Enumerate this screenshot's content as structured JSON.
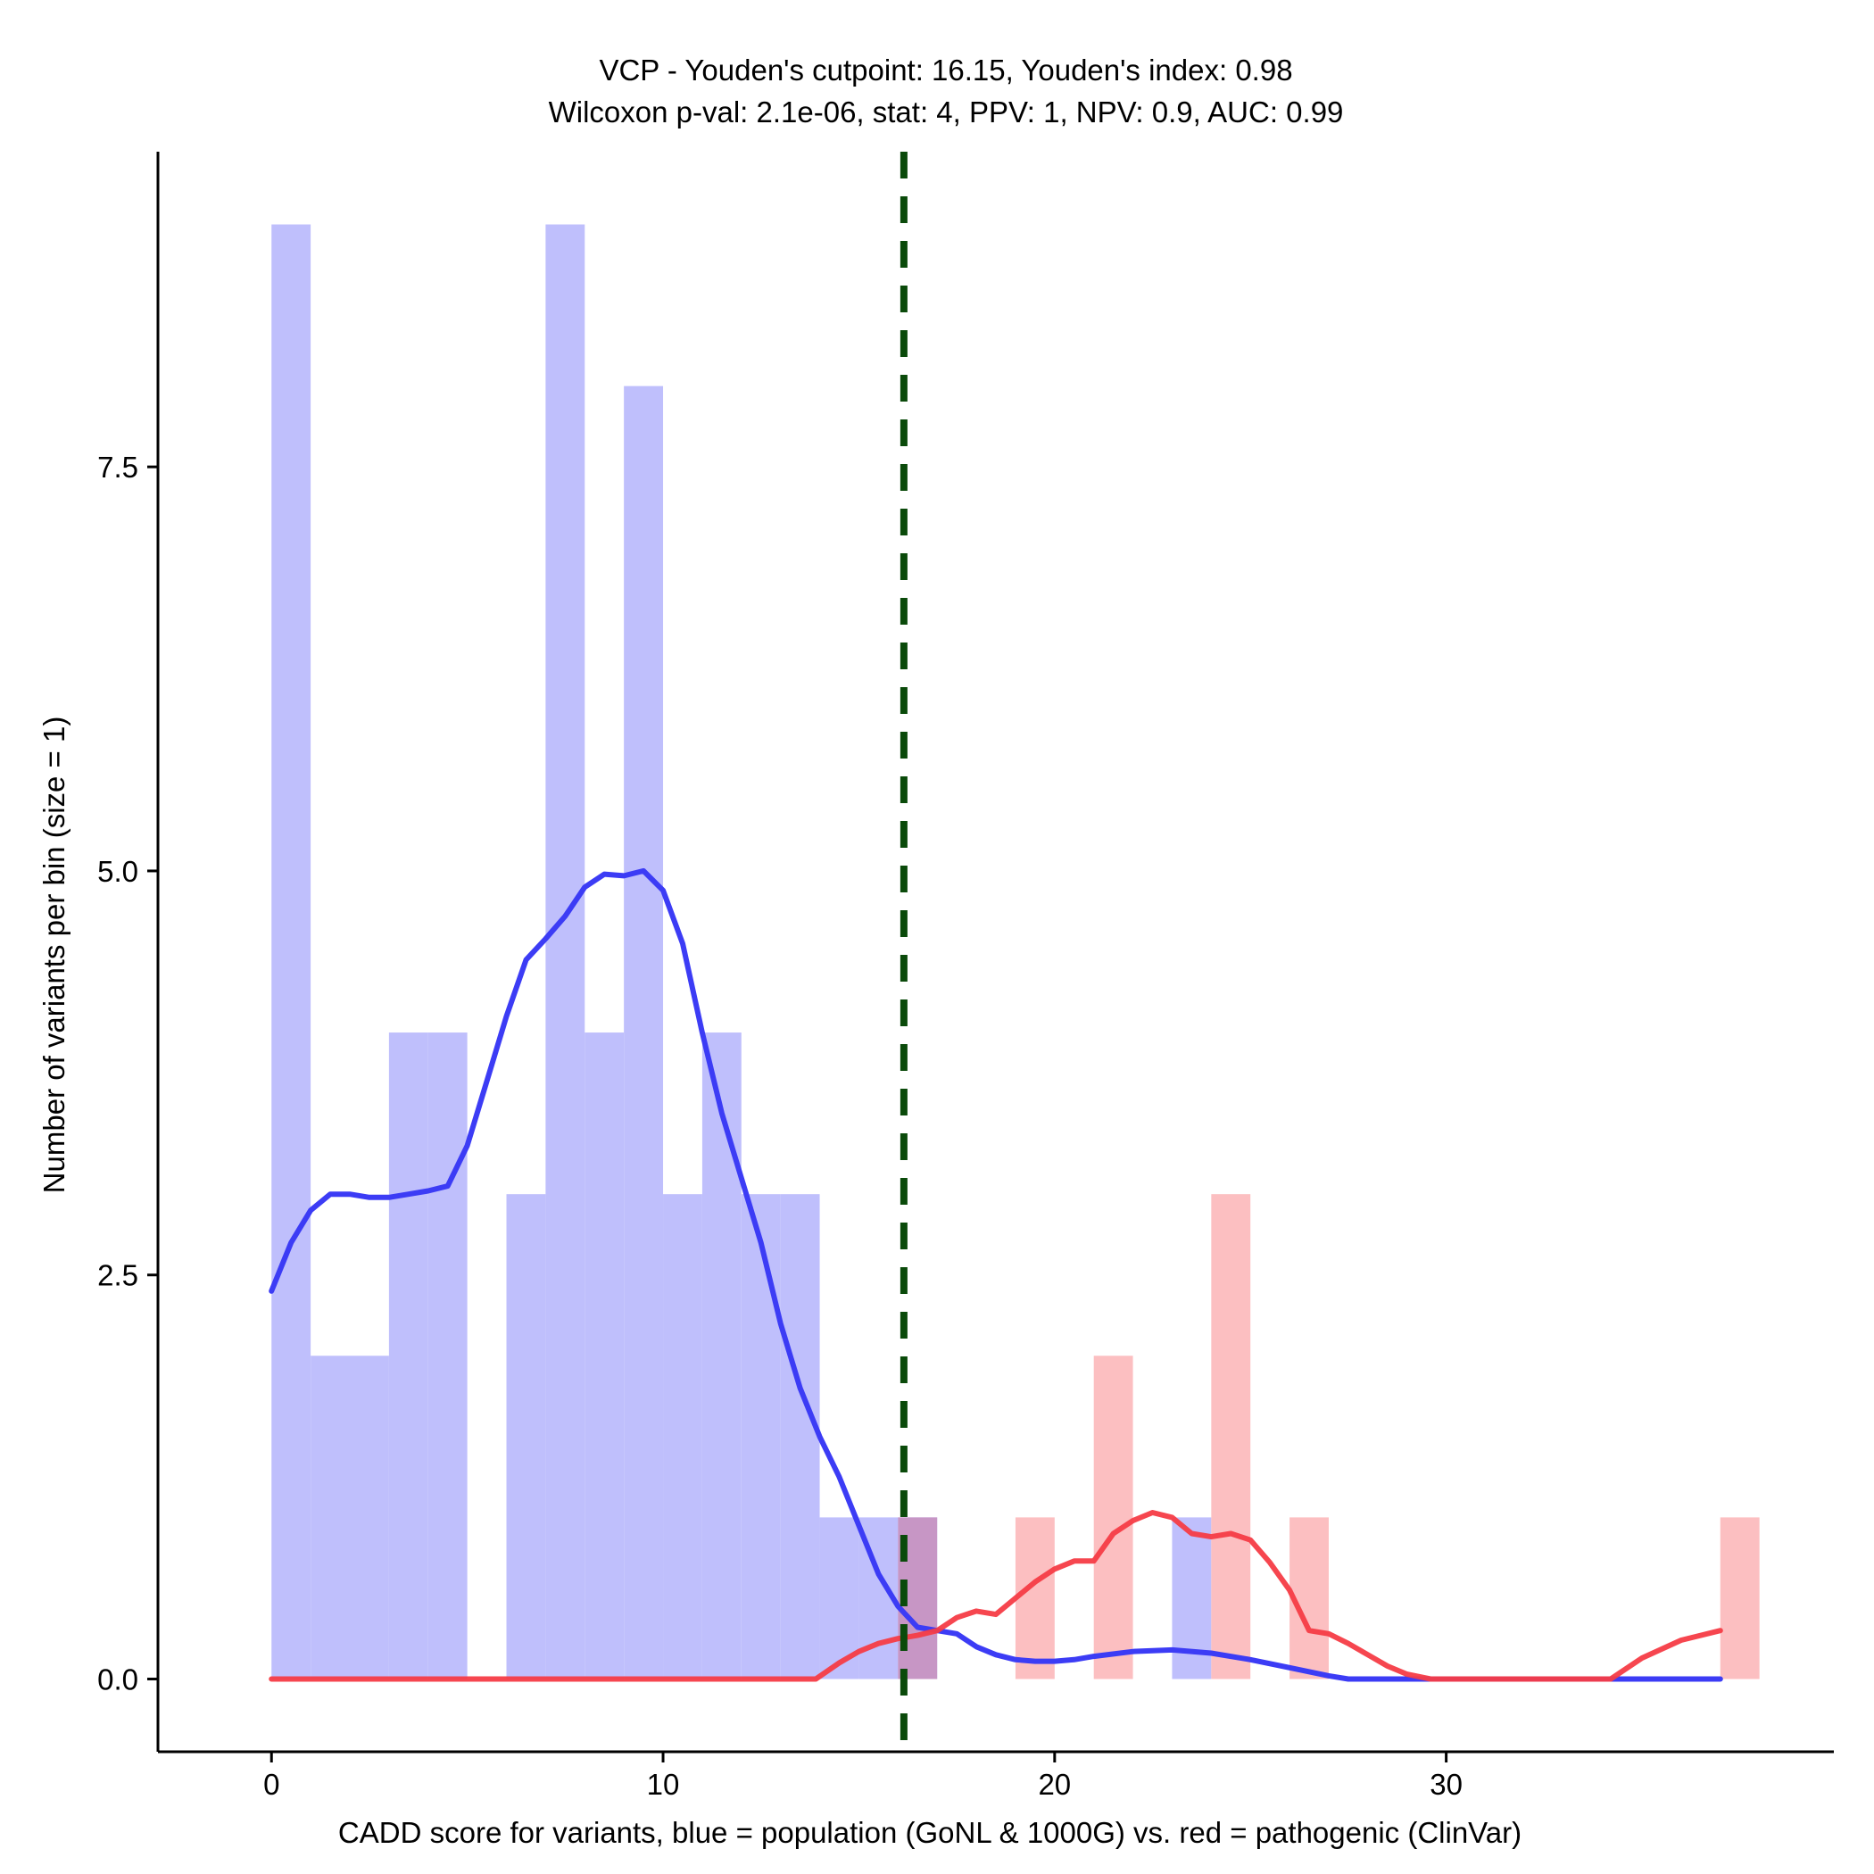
{
  "colors": {
    "population_bar": "#bfbffc",
    "pathogenic_bar": "#fcbfc1",
    "overlap_bar": "#c796c5",
    "population_density": "#3c3cf5",
    "pathogenic_density": "#f53c46",
    "cutpoint": "#0a4a0a",
    "axis": "#000000"
  },
  "chart_data": {
    "type": "histogram",
    "title": "VCP - Youden's cutpoint: 16.15, Youden's index: 0.98",
    "subtitle": "Wilcoxon p-val: 2.1e-06, stat: 4, PPV: 1, NPV: 0.9, AUC: 0.99",
    "xlabel": "CADD score for variants, blue = population (GoNL & 1000G) vs. red = pathogenic (ClinVar)",
    "ylabel": "Number of variants per bin (size = 1)",
    "xlim": [
      -2.9,
      39.9
    ],
    "ylim": [
      -0.45,
      9.45
    ],
    "x_ticks": [
      0,
      10,
      20,
      30
    ],
    "x_tick_labels": [
      "0",
      "10",
      "20",
      "30"
    ],
    "y_ticks": [
      0,
      2.5,
      5,
      7.5
    ],
    "y_tick_labels": [
      "0.0",
      "2.5",
      "5.0",
      "7.5"
    ],
    "bin_width": 1,
    "cutpoint": 16.15,
    "population_bins": [
      {
        "x0": 0,
        "count": 9
      },
      {
        "x0": 1,
        "count": 2
      },
      {
        "x0": 2,
        "count": 2
      },
      {
        "x0": 3,
        "count": 4
      },
      {
        "x0": 4,
        "count": 4
      },
      {
        "x0": 6,
        "count": 3
      },
      {
        "x0": 7,
        "count": 9
      },
      {
        "x0": 8,
        "count": 4
      },
      {
        "x0": 9,
        "count": 8
      },
      {
        "x0": 10,
        "count": 3
      },
      {
        "x0": 11,
        "count": 4
      },
      {
        "x0": 12,
        "count": 3
      },
      {
        "x0": 13,
        "count": 3
      },
      {
        "x0": 14,
        "count": 1
      },
      {
        "x0": 15,
        "count": 1
      },
      {
        "x0": 16,
        "count": 1
      },
      {
        "x0": 23,
        "count": 1
      }
    ],
    "pathogenic_bins": [
      {
        "x0": 16,
        "count": 1
      },
      {
        "x0": 19,
        "count": 1
      },
      {
        "x0": 21,
        "count": 2
      },
      {
        "x0": 24,
        "count": 3
      },
      {
        "x0": 26,
        "count": 1
      },
      {
        "x0": 37,
        "count": 1
      }
    ],
    "population_density": {
      "name": "population (GoNL & 1000G)",
      "x": [
        0,
        0.5,
        1,
        1.5,
        2,
        2.5,
        3,
        3.5,
        4,
        4.5,
        5,
        5.5,
        6,
        6.5,
        7,
        7.5,
        8,
        8.5,
        9,
        9.5,
        10,
        10.5,
        11,
        11.5,
        12,
        12.5,
        13,
        13.5,
        14,
        14.5,
        15,
        15.5,
        16,
        16.5,
        17,
        17.5,
        18,
        18.5,
        19,
        19.5,
        20,
        20.5,
        21,
        22,
        23,
        24,
        25,
        26,
        27,
        27.5,
        28,
        30,
        34,
        37
      ],
      "y": [
        2.4,
        2.7,
        2.9,
        3.0,
        3.0,
        2.98,
        2.98,
        3.0,
        3.02,
        3.05,
        3.3,
        3.7,
        4.1,
        4.45,
        4.58,
        4.72,
        4.9,
        4.98,
        4.97,
        5.0,
        4.88,
        4.55,
        4.0,
        3.5,
        3.1,
        2.7,
        2.2,
        1.8,
        1.5,
        1.25,
        0.95,
        0.65,
        0.45,
        0.32,
        0.3,
        0.28,
        0.2,
        0.15,
        0.12,
        0.11,
        0.11,
        0.12,
        0.14,
        0.17,
        0.18,
        0.16,
        0.12,
        0.07,
        0.02,
        0.0,
        0.0,
        0.0,
        0.0,
        0.0
      ]
    },
    "pathogenic_density": {
      "name": "pathogenic (ClinVar)",
      "x": [
        0,
        13.9,
        14.5,
        15,
        15.5,
        16,
        16.5,
        17,
        17.5,
        18,
        18.5,
        19,
        19.5,
        20,
        20.5,
        21,
        21.5,
        22,
        22.5,
        23,
        23.5,
        24,
        24.5,
        25,
        25.5,
        26,
        26.5,
        27,
        27.5,
        28,
        28.5,
        29,
        29.6,
        30,
        32,
        34.2,
        35,
        36,
        37
      ],
      "y": [
        0,
        0,
        0.1,
        0.17,
        0.22,
        0.25,
        0.27,
        0.3,
        0.38,
        0.42,
        0.4,
        0.5,
        0.6,
        0.68,
        0.73,
        0.73,
        0.9,
        0.98,
        1.03,
        1.0,
        0.9,
        0.88,
        0.9,
        0.86,
        0.72,
        0.55,
        0.3,
        0.28,
        0.22,
        0.15,
        0.08,
        0.03,
        0.0,
        0.0,
        0.0,
        0.0,
        0.13,
        0.24,
        0.3
      ]
    }
  }
}
